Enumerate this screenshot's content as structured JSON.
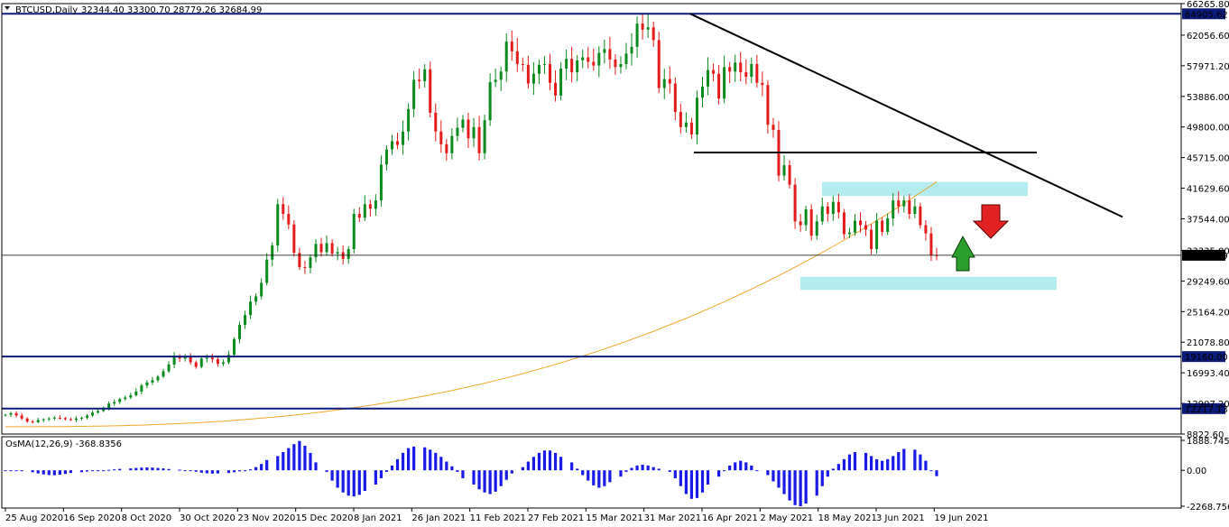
{
  "header": {
    "symbol": "BTCUSD,Daily",
    "ohlc": "32344.40 33300.70 28779.26 32684.99"
  },
  "colors": {
    "bull": "#0b8a1e",
    "bear": "#e31b1b",
    "ma": "#f0a830",
    "level": "#0c1a7a",
    "zone": "#b3ecef",
    "osma": "#1a1ae6",
    "arrow_up": "#2c9e2c",
    "arrow_down": "#e22222"
  },
  "chart_data": {
    "type": "candlestick",
    "y_axis_labels": [
      "66265.80",
      "62056.60",
      "57971.20",
      "53886.00",
      "49800.00",
      "45715.00",
      "41629.60",
      "37544.00",
      "33335.00",
      "29249.60",
      "25164.20",
      "21078.80",
      "16993.40",
      "12907.20",
      "8822.60"
    ],
    "ylim": [
      8822.6,
      66265.8
    ],
    "x_axis_labels": [
      "25 Aug 2020",
      "16 Sep 2020",
      "8 Oct 2020",
      "30 Oct 2020",
      "23 Nov 2020",
      "15 Dec 2020",
      "8 Jan 2021",
      "26 Jan 2021",
      "11 Feb 2021",
      "27 Feb 2021",
      "15 Mar 2021",
      "31 Mar 2021",
      "16 Apr 2021",
      "2 May 2021",
      "18 May 2021",
      "3 Jun 2021",
      "19 Jun 2021"
    ],
    "current_price": "32684.99",
    "horizontal_levels": [
      "64905.62",
      "19160.00",
      "12217.13"
    ],
    "series_close": [
      11400,
      11600,
      11300,
      10900,
      10500,
      10400,
      10700,
      10800,
      10900,
      11000,
      10950,
      10800,
      10700,
      10900,
      11000,
      11300,
      11700,
      11900,
      12300,
      12900,
      13100,
      13500,
      13700,
      14000,
      14500,
      15300,
      15700,
      16000,
      16500,
      17200,
      18100,
      19200,
      18900,
      19100,
      18400,
      17800,
      18900,
      19000,
      18800,
      18200,
      18400,
      19400,
      21500,
      23400,
      24700,
      26500,
      27200,
      29000,
      32100,
      34000,
      39500,
      38200,
      36800,
      33000,
      31100,
      31000,
      32400,
      34200,
      33100,
      34300,
      32900,
      33100,
      32200,
      33500,
      38200,
      37700,
      39500,
      38900,
      40000,
      44800,
      46800,
      47900,
      47400,
      49200,
      52200,
      56100,
      55900,
      57500,
      51700,
      49200,
      47500,
      46300,
      48600,
      49700,
      50800,
      48300,
      49800,
      46300,
      50700,
      55800,
      56100,
      57200,
      61200,
      59900,
      58200,
      58100,
      55600,
      56900,
      58100,
      58200,
      55700,
      54000,
      57600,
      58900,
      57100,
      58700,
      59100,
      58500,
      58000,
      59700,
      60200,
      58800,
      57800,
      58200,
      59600,
      60500,
      63600,
      62800,
      63100,
      61400,
      55000,
      56200,
      55600,
      51800,
      49800,
      50400,
      48800,
      53700,
      55200,
      57400,
      56900,
      53600,
      57800,
      57200,
      58400,
      57100,
      56500,
      58200,
      55700,
      55400,
      50100,
      49400,
      43300,
      44700,
      42100,
      37200,
      36700,
      38800,
      35300,
      37200,
      39200,
      38200,
      39800,
      38400,
      35500,
      35700,
      37300,
      36700,
      36100,
      33500,
      37300,
      35800,
      37600,
      40000,
      39200,
      40000,
      38200,
      39200,
      36700,
      35600,
      32700,
      32684.99
    ],
    "moving_average": {
      "start": 9800,
      "end": 42500
    },
    "osma": {
      "label": "OsMA(12,26,9) -368.8356",
      "y_axis_labels": [
        "1888.7456",
        "0.00",
        "-2268.7568"
      ],
      "ylim": [
        -2268.7568,
        1888.7456
      ],
      "values": [
        0,
        0,
        -20,
        -60,
        -120,
        -200,
        -260,
        -300,
        -310,
        -280,
        -230,
        -170,
        -120,
        -80,
        -40,
        -10,
        0,
        30,
        60,
        90,
        120,
        150,
        170,
        180,
        170,
        150,
        120,
        80,
        40,
        0,
        -40,
        -90,
        -150,
        -190,
        -210,
        -200,
        -170,
        -120,
        -70,
        -20,
        60,
        200,
        400,
        650,
        900,
        1150,
        1400,
        1650,
        1850,
        1550,
        1100,
        500,
        -100,
        -650,
        -1100,
        -1400,
        -1600,
        -1650,
        -1550,
        -1300,
        -900,
        -500,
        -100,
        300,
        700,
        1100,
        1400,
        1500,
        1450,
        1300,
        1100,
        850,
        550,
        250,
        -100,
        -500,
        -900,
        -1200,
        -1400,
        -1500,
        -1350,
        -1000,
        -600,
        -200,
        200,
        550,
        850,
        1100,
        1250,
        1250,
        1100,
        850,
        500,
        100,
        -300,
        -650,
        -950,
        -1100,
        -1000,
        -750,
        -400,
        -100,
        150,
        300,
        350,
        300,
        200,
        100,
        -100,
        -500,
        -1000,
        -1500,
        -1800,
        -1750,
        -1400,
        -900,
        -400,
        0,
        300,
        500,
        600,
        500,
        300,
        0,
        -300,
        -700,
        -1100,
        -1500,
        -1900,
        -2200,
        -2268,
        -2100,
        -1600,
        -1000,
        -400,
        100,
        400,
        700,
        1000,
        1150,
        1100,
        900,
        700,
        600,
        700,
        900,
        1150,
        1350,
        1300,
        1000,
        600,
        0,
        -368.8356
      ]
    }
  }
}
